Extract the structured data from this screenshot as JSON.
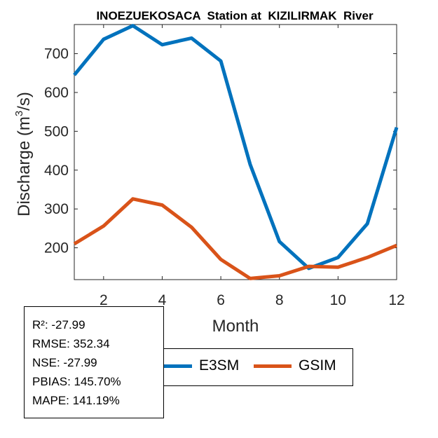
{
  "chart_data": {
    "type": "line",
    "title": "INOEZUEKOSACA  Station at  KIZILIRMAK  River",
    "xlabel": "Month",
    "ylabel_main": "Discharge (m",
    "ylabel_sup": "3",
    "ylabel_tail": "/s)",
    "xlim": [
      1,
      12
    ],
    "ylim": [
      118,
      775
    ],
    "x": [
      1,
      2,
      3,
      4,
      5,
      6,
      7,
      8,
      9,
      10,
      11,
      12
    ],
    "xticks": [
      2,
      4,
      6,
      8,
      10,
      12
    ],
    "yticks": [
      200,
      300,
      400,
      500,
      600,
      700
    ],
    "series": [
      {
        "name": "E3SM",
        "color": "#0072BD",
        "values": [
          645,
          737,
          772,
          723,
          740,
          681,
          415,
          216,
          147,
          175,
          262,
          510
        ]
      },
      {
        "name": "GSIM",
        "color": "#D95319",
        "values": [
          210,
          256,
          326,
          310,
          253,
          170,
          121,
          128,
          152,
          150,
          175,
          206
        ]
      }
    ],
    "legend": [
      "E3SM",
      "GSIM"
    ]
  },
  "stats": {
    "r2": "R²: -27.99",
    "rmse": "RMSE: 352.34",
    "nse": "NSE: -27.99",
    "pbias": "PBIAS: 145.70%",
    "mape": "MAPE: 141.19%"
  }
}
